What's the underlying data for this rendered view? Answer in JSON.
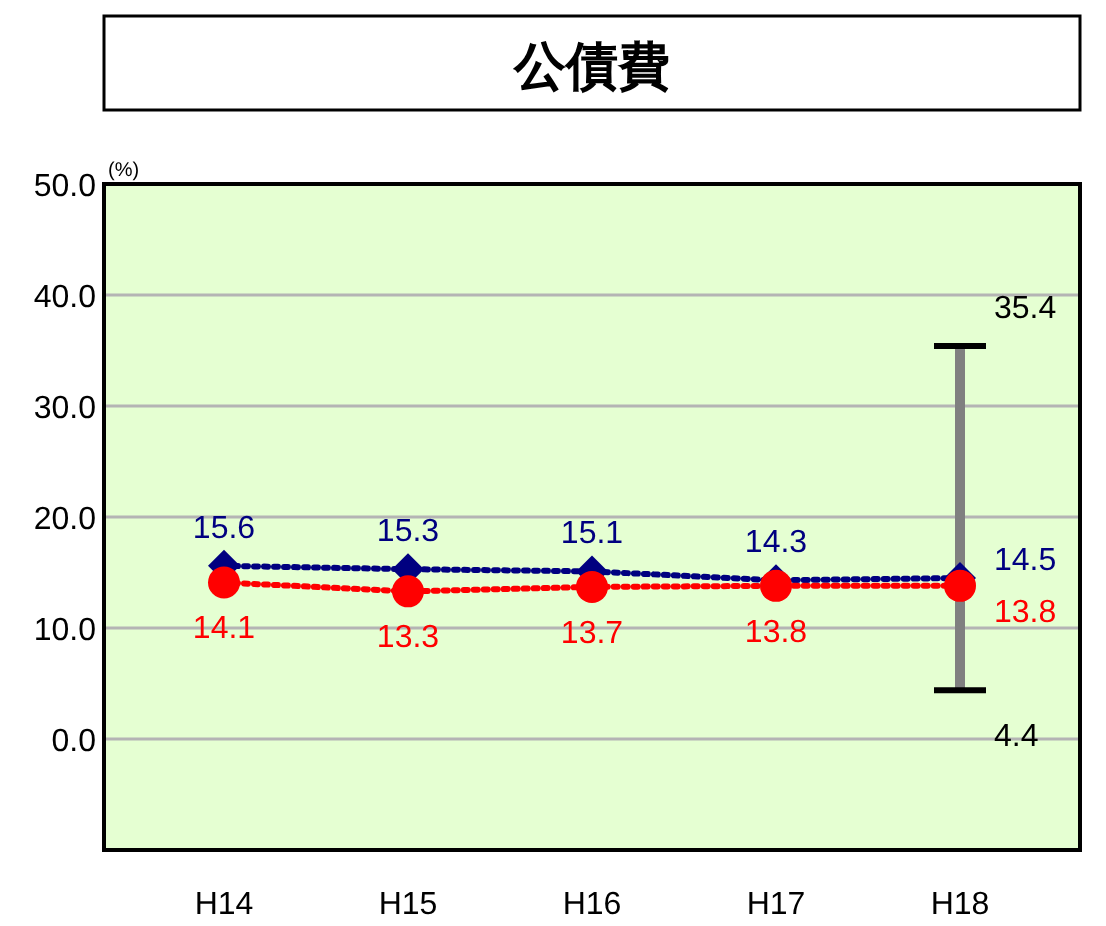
{
  "chart_data": {
    "type": "line",
    "title": "公債費",
    "ylabel": "(%)",
    "categories": [
      "H14",
      "H15",
      "H16",
      "H17",
      "H18"
    ],
    "series": [
      {
        "color": "#000080",
        "values": [
          15.6,
          15.3,
          15.1,
          14.3,
          14.5
        ],
        "marker": "diamond"
      },
      {
        "color": "#ff0000",
        "values": [
          14.1,
          13.3,
          13.7,
          13.8,
          13.8
        ],
        "marker": "circle",
        "errors": [
          null,
          null,
          null,
          null,
          [
            4.4,
            35.4
          ]
        ]
      }
    ],
    "annotations": [
      {
        "text": "35.4",
        "x": "H18",
        "y": 35.4
      },
      {
        "text": "4.4",
        "x": "H18",
        "y": 4.4
      }
    ],
    "ylim": [
      -10,
      50
    ],
    "yticks": [
      {
        "value": -10,
        "label": null
      },
      {
        "value": 0,
        "label": "0.0"
      },
      {
        "value": 10,
        "label": "10.0"
      },
      {
        "value": 20,
        "label": "20.0"
      },
      {
        "value": 30,
        "label": "30.0"
      },
      {
        "value": 40,
        "label": "40.0"
      },
      {
        "value": 50,
        "label": "50.0"
      }
    ],
    "grid": "y",
    "line_style": "dotted",
    "data_labels": true
  }
}
